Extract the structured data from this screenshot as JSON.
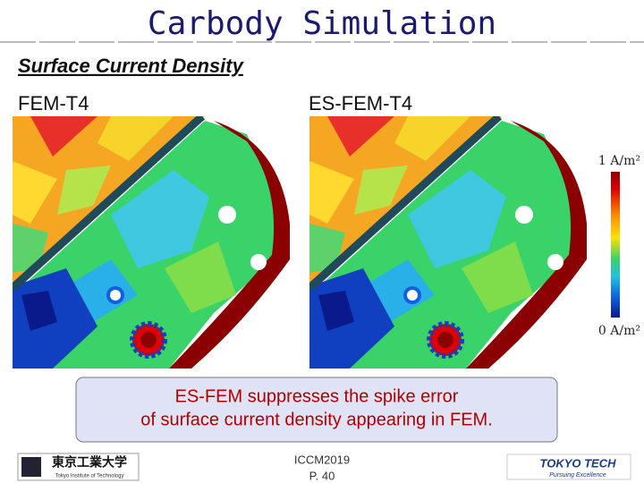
{
  "header": {
    "title": "Carbody Simulation",
    "subtitle": "Surface Current Density"
  },
  "panels": [
    {
      "label": "FEM-T4"
    },
    {
      "label": "ES-FEM-T4"
    }
  ],
  "colorbar": {
    "max_label": "1 A/m²",
    "min_label": "0 A/m²"
  },
  "callout": {
    "lines": [
      "ES-FEM suppresses the spike error",
      "of surface current density appearing in FEM."
    ]
  },
  "footer": {
    "logo_left": "東京工業大学",
    "logo_left_sub": "Tokyo Institute of Technology",
    "conference": "ICCM2019",
    "page": "P. 40",
    "logo_right": "TOKYO TECH",
    "logo_right_sub": "Pursuing Excellence"
  }
}
